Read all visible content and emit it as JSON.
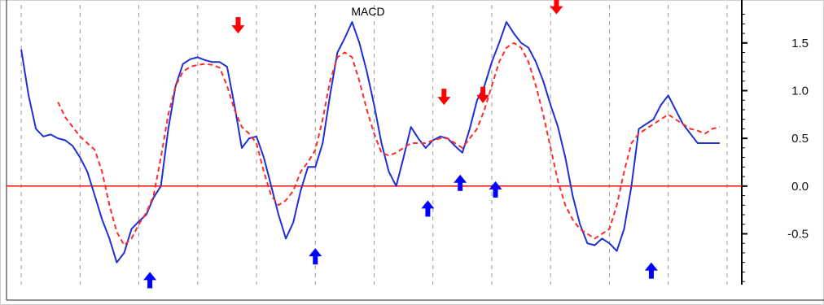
{
  "chart_data": {
    "type": "line",
    "title": "MACD",
    "xlim": [
      0,
      100
    ],
    "ylim": [
      -1.05,
      1.95
    ],
    "yticks": [
      1.5,
      1.0,
      0.5,
      0.0,
      -0.5
    ],
    "ytick_labels": [
      "1.5",
      "1.0",
      "0.5",
      "0.0",
      "-0.5"
    ],
    "grid": "vertical dashed",
    "zero_line_color": "#ff0000",
    "vertical_gridlines_x": [
      2,
      10,
      18,
      26,
      34,
      42,
      50,
      58,
      66,
      74,
      82,
      90,
      98
    ],
    "series": [
      {
        "color": "#1f2fd6",
        "style": "solid",
        "x": [
          2,
          3,
          4,
          5,
          6,
          7,
          8,
          9,
          10,
          11,
          12,
          13,
          14,
          15,
          16,
          17,
          18,
          19,
          20,
          21,
          22,
          23,
          24,
          25,
          26,
          27,
          28,
          29,
          30,
          31,
          32,
          33,
          34,
          35,
          36,
          37,
          38,
          39,
          40,
          41,
          42,
          43,
          44,
          45,
          46,
          47,
          48,
          49,
          50,
          51,
          52,
          53,
          54,
          55,
          56,
          57,
          58,
          59,
          60,
          61,
          62,
          63,
          64,
          65,
          66,
          67,
          68,
          69,
          70,
          71,
          72,
          73,
          74,
          75,
          76,
          77,
          78,
          79,
          80,
          81,
          82,
          83,
          84,
          85,
          86,
          87,
          88,
          89,
          90,
          91,
          92,
          93,
          94,
          95,
          96,
          97
        ],
        "y": [
          1.43,
          0.95,
          0.6,
          0.52,
          0.54,
          0.5,
          0.48,
          0.42,
          0.3,
          0.15,
          -0.1,
          -0.35,
          -0.55,
          -0.8,
          -0.7,
          -0.45,
          -0.37,
          -0.3,
          -0.12,
          0.0,
          0.6,
          1.05,
          1.28,
          1.33,
          1.35,
          1.32,
          1.3,
          1.3,
          1.25,
          0.85,
          0.4,
          0.5,
          0.52,
          0.3,
          0.0,
          -0.3,
          -0.55,
          -0.38,
          -0.05,
          0.2,
          0.2,
          0.45,
          0.95,
          1.4,
          1.55,
          1.72,
          1.5,
          1.2,
          0.85,
          0.45,
          0.15,
          0.0,
          0.3,
          0.62,
          0.5,
          0.4,
          0.48,
          0.52,
          0.5,
          0.42,
          0.35,
          0.6,
          0.9,
          1.05,
          1.3,
          1.5,
          1.72,
          1.6,
          1.5,
          1.45,
          1.3,
          1.1,
          0.85,
          0.62,
          0.3,
          -0.1,
          -0.4,
          -0.6,
          -0.62,
          -0.55,
          -0.6,
          -0.68,
          -0.45,
          0.0,
          0.6,
          0.65,
          0.7,
          0.85,
          0.95,
          0.8,
          0.65,
          0.55,
          0.45,
          0.45,
          0.45,
          0.45
        ]
      },
      {
        "color": "#ff2a2a",
        "style": "dashed",
        "x": [
          7,
          8,
          9,
          10,
          11,
          12,
          13,
          14,
          15,
          16,
          17,
          18,
          19,
          20,
          21,
          22,
          23,
          24,
          25,
          26,
          27,
          28,
          29,
          30,
          31,
          32,
          33,
          34,
          35,
          36,
          37,
          38,
          39,
          40,
          41,
          42,
          43,
          44,
          45,
          46,
          47,
          48,
          49,
          50,
          51,
          52,
          53,
          54,
          55,
          56,
          57,
          58,
          59,
          60,
          61,
          62,
          63,
          64,
          65,
          66,
          67,
          68,
          69,
          70,
          71,
          72,
          73,
          74,
          75,
          76,
          77,
          78,
          79,
          80,
          81,
          82,
          83,
          84,
          85,
          86,
          87,
          88,
          89,
          90,
          91,
          92,
          93,
          94,
          95,
          96,
          97
        ],
        "y": [
          0.88,
          0.72,
          0.62,
          0.52,
          0.45,
          0.38,
          0.15,
          -0.2,
          -0.48,
          -0.62,
          -0.55,
          -0.4,
          -0.28,
          -0.1,
          0.3,
          0.75,
          1.05,
          1.2,
          1.25,
          1.27,
          1.28,
          1.27,
          1.24,
          1.05,
          0.8,
          0.62,
          0.55,
          0.45,
          0.15,
          -0.1,
          -0.2,
          -0.15,
          -0.05,
          0.15,
          0.25,
          0.38,
          0.7,
          1.1,
          1.35,
          1.4,
          1.35,
          1.1,
          0.8,
          0.55,
          0.35,
          0.32,
          0.35,
          0.4,
          0.45,
          0.45,
          0.45,
          0.48,
          0.5,
          0.5,
          0.45,
          0.4,
          0.5,
          0.6,
          0.8,
          1.05,
          1.3,
          1.45,
          1.5,
          1.45,
          1.3,
          1.05,
          0.75,
          0.4,
          0.05,
          -0.2,
          -0.35,
          -0.45,
          -0.5,
          -0.55,
          -0.5,
          -0.45,
          -0.2,
          0.15,
          0.45,
          0.55,
          0.6,
          0.65,
          0.7,
          0.75,
          0.7,
          0.65,
          0.6,
          0.58,
          0.55,
          0.6,
          0.62
        ]
      }
    ],
    "annotations": [
      {
        "kind": "sell-arrow",
        "direction": "down",
        "color": "#ff0000",
        "x": 31.5,
        "y": 1.6
      },
      {
        "kind": "sell-arrow",
        "direction": "down",
        "color": "#ff0000",
        "x": 59.5,
        "y": 0.85
      },
      {
        "kind": "sell-arrow",
        "direction": "down",
        "color": "#ff0000",
        "x": 64.8,
        "y": 0.87
      },
      {
        "kind": "sell-arrow",
        "direction": "down",
        "color": "#ff0000",
        "x": 74.8,
        "y": 1.8
      },
      {
        "kind": "buy-arrow",
        "direction": "up",
        "color": "#0000ff",
        "x": 19.5,
        "y": -0.9
      },
      {
        "kind": "buy-arrow",
        "direction": "up",
        "color": "#0000ff",
        "x": 42.0,
        "y": -0.65
      },
      {
        "kind": "buy-arrow",
        "direction": "up",
        "color": "#0000ff",
        "x": 57.3,
        "y": -0.15
      },
      {
        "kind": "buy-arrow",
        "direction": "up",
        "color": "#0000ff",
        "x": 61.7,
        "y": 0.12
      },
      {
        "kind": "buy-arrow",
        "direction": "up",
        "color": "#0000ff",
        "x": 66.5,
        "y": 0.05
      },
      {
        "kind": "buy-arrow",
        "direction": "up",
        "color": "#0000ff",
        "x": 87.7,
        "y": -0.8
      }
    ]
  }
}
